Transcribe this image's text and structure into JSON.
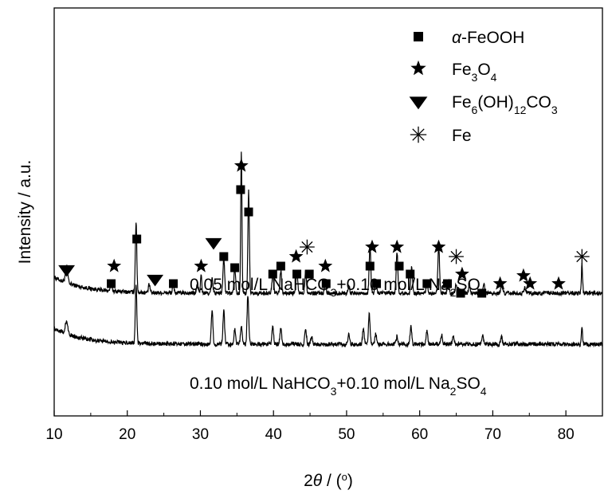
{
  "chart_data": {
    "type": "line",
    "title": "",
    "xlabel": "2θ / (°)",
    "xlabel_parts": {
      "prefix": "2",
      "theta": "θ",
      "slash": " / (",
      "deg": "o",
      "close": ")"
    },
    "ylabel": "Intensity / a.u.",
    "xlim": [
      10,
      85
    ],
    "xticks": [
      10,
      20,
      30,
      40,
      50,
      60,
      70,
      80
    ],
    "yticks_shown": false,
    "grid": false,
    "legend_position": "top-right",
    "legend": [
      {
        "marker": "square",
        "parts": [
          [
            "i",
            "α"
          ],
          [
            "n",
            "-FeOOH"
          ]
        ]
      },
      {
        "marker": "star",
        "parts": [
          [
            "n",
            "Fe"
          ],
          [
            "s",
            "3"
          ],
          [
            "n",
            "O"
          ],
          [
            "s",
            "4"
          ]
        ]
      },
      {
        "marker": "triangle-down",
        "parts": [
          [
            "n",
            "Fe"
          ],
          [
            "s",
            "6"
          ],
          [
            "n",
            "(OH)"
          ],
          [
            "s",
            "12"
          ],
          [
            "n",
            "CO"
          ],
          [
            "s",
            "3"
          ]
        ]
      },
      {
        "marker": "asterisk",
        "parts": [
          [
            "n",
            "Fe"
          ]
        ]
      }
    ],
    "series": [
      {
        "label_parts": [
          [
            "n",
            "0.05 mol/L NaHCO"
          ],
          [
            "s",
            "3"
          ],
          [
            "n",
            "+0.10 mol/L Na"
          ],
          [
            "s",
            "2"
          ],
          [
            "n",
            "SO"
          ],
          [
            "s",
            "4"
          ]
        ],
        "baseline": 1.6,
        "peaks": [
          [
            11.7,
            0.5,
            0.3
          ],
          [
            17.8,
            0.3,
            0.2
          ],
          [
            21.2,
            2.2,
            0.18
          ],
          [
            23.0,
            0.25,
            0.2
          ],
          [
            26.3,
            0.25,
            0.2
          ],
          [
            29.6,
            0.3,
            0.2
          ],
          [
            30.1,
            0.6,
            0.15
          ],
          [
            31.6,
            0.45,
            0.2
          ],
          [
            33.2,
            1.1,
            0.2
          ],
          [
            34.7,
            0.8,
            0.2
          ],
          [
            35.6,
            4.5,
            0.15
          ],
          [
            36.6,
            3.2,
            0.18
          ],
          [
            39.9,
            0.6,
            0.2
          ],
          [
            41.0,
            0.7,
            0.2
          ],
          [
            43.2,
            0.7,
            0.2
          ],
          [
            44.4,
            0.7,
            0.2
          ],
          [
            47.1,
            0.35,
            0.2
          ],
          [
            50.3,
            0.25,
            0.2
          ],
          [
            53.2,
            1.5,
            0.2
          ],
          [
            54.0,
            0.4,
            0.2
          ],
          [
            56.9,
            1.3,
            0.2
          ],
          [
            58.9,
            0.8,
            0.2
          ],
          [
            61.0,
            0.4,
            0.2
          ],
          [
            62.6,
            1.5,
            0.2
          ],
          [
            63.9,
            0.4,
            0.2
          ],
          [
            65.0,
            0.3,
            0.2
          ],
          [
            66.8,
            0.25,
            0.2
          ],
          [
            68.8,
            0.25,
            0.2
          ],
          [
            71.2,
            0.3,
            0.2
          ],
          [
            74.4,
            0.2,
            0.2
          ],
          [
            82.2,
            0.9,
            0.15
          ]
        ]
      },
      {
        "label_parts": [
          [
            "n",
            "0.10 mol/L NaHCO"
          ],
          [
            "s",
            "3"
          ],
          [
            "n",
            "+0.10 mol/L Na"
          ],
          [
            "s",
            "2"
          ],
          [
            "n",
            "SO"
          ],
          [
            "s",
            "4"
          ]
        ],
        "baseline": 0.0,
        "peaks": [
          [
            11.7,
            0.4,
            0.3
          ],
          [
            21.2,
            1.85,
            0.18
          ],
          [
            31.6,
            1.05,
            0.2
          ],
          [
            33.2,
            1.05,
            0.2
          ],
          [
            34.7,
            0.5,
            0.2
          ],
          [
            35.6,
            0.6,
            0.2
          ],
          [
            36.5,
            1.55,
            0.2
          ],
          [
            39.9,
            0.6,
            0.2
          ],
          [
            41.0,
            0.5,
            0.2
          ],
          [
            44.4,
            0.5,
            0.2
          ],
          [
            45.2,
            0.25,
            0.2
          ],
          [
            50.3,
            0.3,
            0.2
          ],
          [
            52.3,
            0.5,
            0.2
          ],
          [
            53.1,
            0.95,
            0.2
          ],
          [
            54.0,
            0.35,
            0.2
          ],
          [
            56.9,
            0.25,
            0.2
          ],
          [
            58.8,
            0.55,
            0.2
          ],
          [
            61.0,
            0.4,
            0.2
          ],
          [
            63.0,
            0.3,
            0.2
          ],
          [
            64.6,
            0.3,
            0.2
          ],
          [
            68.6,
            0.3,
            0.2
          ],
          [
            71.2,
            0.25,
            0.2
          ],
          [
            82.2,
            0.5,
            0.15
          ]
        ]
      }
    ],
    "phase_markers": [
      {
        "type": "triangle-down",
        "x": 11.7,
        "y": 2.35
      },
      {
        "type": "triangle-down",
        "x": 23.8,
        "y": 2.05
      },
      {
        "type": "triangle-down",
        "x": 31.8,
        "y": 3.2
      },
      {
        "type": "square",
        "x": 17.8,
        "y": 1.9
      },
      {
        "type": "square",
        "x": 21.3,
        "y": 3.3
      },
      {
        "type": "square",
        "x": 26.3,
        "y": 1.9
      },
      {
        "type": "square",
        "x": 33.2,
        "y": 2.75
      },
      {
        "type": "square",
        "x": 34.7,
        "y": 2.4
      },
      {
        "type": "square",
        "x": 35.5,
        "y": 4.85
      },
      {
        "type": "square",
        "x": 36.6,
        "y": 4.15
      },
      {
        "type": "square",
        "x": 39.9,
        "y": 2.2
      },
      {
        "type": "square",
        "x": 41.0,
        "y": 2.45
      },
      {
        "type": "square",
        "x": 43.2,
        "y": 2.2
      },
      {
        "type": "square",
        "x": 44.9,
        "y": 2.2
      },
      {
        "type": "square",
        "x": 47.2,
        "y": 1.9
      },
      {
        "type": "square",
        "x": 53.2,
        "y": 2.45
      },
      {
        "type": "square",
        "x": 54.1,
        "y": 1.9
      },
      {
        "type": "square",
        "x": 57.2,
        "y": 2.45
      },
      {
        "type": "square",
        "x": 58.7,
        "y": 2.2
      },
      {
        "type": "square",
        "x": 61.0,
        "y": 1.9
      },
      {
        "type": "square",
        "x": 63.8,
        "y": 1.9
      },
      {
        "type": "square",
        "x": 65.6,
        "y": 1.6
      },
      {
        "type": "square",
        "x": 68.5,
        "y": 1.6
      },
      {
        "type": "star",
        "x": 18.2,
        "y": 2.45
      },
      {
        "type": "star",
        "x": 30.1,
        "y": 2.45
      },
      {
        "type": "star",
        "x": 35.6,
        "y": 5.6
      },
      {
        "type": "star",
        "x": 43.1,
        "y": 2.75
      },
      {
        "type": "star",
        "x": 47.1,
        "y": 2.45
      },
      {
        "type": "star",
        "x": 53.5,
        "y": 3.05
      },
      {
        "type": "star",
        "x": 56.9,
        "y": 3.05
      },
      {
        "type": "star",
        "x": 62.6,
        "y": 3.05
      },
      {
        "type": "star",
        "x": 65.8,
        "y": 2.2
      },
      {
        "type": "star",
        "x": 71.0,
        "y": 1.9
      },
      {
        "type": "star",
        "x": 74.2,
        "y": 2.15
      },
      {
        "type": "star",
        "x": 75.1,
        "y": 1.9
      },
      {
        "type": "star",
        "x": 79.0,
        "y": 1.9
      },
      {
        "type": "asterisk",
        "x": 44.6,
        "y": 3.05
      },
      {
        "type": "asterisk",
        "x": 65.0,
        "y": 2.75
      },
      {
        "type": "asterisk",
        "x": 82.2,
        "y": 2.75
      }
    ]
  }
}
